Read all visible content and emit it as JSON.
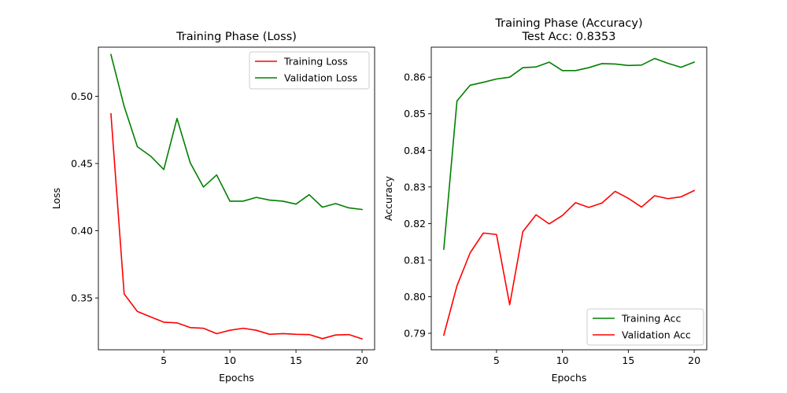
{
  "chart_data": [
    {
      "type": "line",
      "title": "Training Phase (Loss)",
      "subtitle": "",
      "xlabel": "Epochs",
      "ylabel": "Loss",
      "xlim": [
        0.05,
        20.95
      ],
      "ylim": [
        0.3115,
        0.5365
      ],
      "xticks": [
        5,
        10,
        15,
        20
      ],
      "xtick_labels": [
        "5",
        "10",
        "15",
        "20"
      ],
      "yticks": [
        0.35,
        0.4,
        0.45,
        0.5
      ],
      "ytick_labels": [
        "0.35",
        "0.40",
        "0.45",
        "0.50"
      ],
      "grid": false,
      "legend_position": "top-right",
      "x": [
        1,
        2,
        3,
        4,
        5,
        6,
        7,
        8,
        9,
        10,
        11,
        12,
        13,
        14,
        15,
        16,
        17,
        18,
        19,
        20
      ],
      "series": [
        {
          "name": "Training Loss",
          "color": "#ff0000",
          "values": [
            0.487,
            0.353,
            0.34,
            0.336,
            0.332,
            0.3315,
            0.328,
            0.3275,
            0.3235,
            0.326,
            0.3275,
            0.326,
            0.323,
            0.3235,
            0.323,
            0.3228,
            0.3198,
            0.3225,
            0.3228,
            0.3196
          ]
        },
        {
          "name": "Validation Loss",
          "color": "#008000",
          "values": [
            0.531,
            0.4925,
            0.4625,
            0.4555,
            0.4455,
            0.4835,
            0.4505,
            0.4325,
            0.4415,
            0.422,
            0.422,
            0.4248,
            0.4228,
            0.422,
            0.4198,
            0.4268,
            0.4175,
            0.4202,
            0.417,
            0.4158
          ]
        }
      ]
    },
    {
      "type": "line",
      "title": "Training Phase (Accuracy)",
      "subtitle": "Test Acc: 0.8353",
      "xlabel": "Epochs",
      "ylabel": "Accuracy",
      "xlim": [
        0.05,
        20.95
      ],
      "ylim": [
        0.7855,
        0.8682
      ],
      "xticks": [
        5,
        10,
        15,
        20
      ],
      "xtick_labels": [
        "5",
        "10",
        "15",
        "20"
      ],
      "yticks": [
        0.79,
        0.8,
        0.81,
        0.82,
        0.83,
        0.84,
        0.85,
        0.86
      ],
      "ytick_labels": [
        "0.79",
        "0.80",
        "0.81",
        "0.82",
        "0.83",
        "0.84",
        "0.85",
        "0.86"
      ],
      "grid": false,
      "legend_position": "bottom-right",
      "x": [
        1,
        2,
        3,
        4,
        5,
        6,
        7,
        8,
        9,
        10,
        11,
        12,
        13,
        14,
        15,
        16,
        17,
        18,
        19,
        20
      ],
      "series": [
        {
          "name": "Training Acc",
          "color": "#008000",
          "values": [
            0.813,
            0.8535,
            0.8578,
            0.8586,
            0.8595,
            0.86,
            0.8626,
            0.8628,
            0.8641,
            0.8618,
            0.8618,
            0.8626,
            0.8637,
            0.8636,
            0.8632,
            0.8633,
            0.8651,
            0.8638,
            0.8627,
            0.8641
          ]
        },
        {
          "name": "Validation Acc",
          "color": "#ff0000",
          "values": [
            0.7895,
            0.803,
            0.812,
            0.8174,
            0.817,
            0.7978,
            0.8178,
            0.8224,
            0.8199,
            0.8222,
            0.8257,
            0.8244,
            0.8256,
            0.8288,
            0.8269,
            0.8245,
            0.8276,
            0.8268,
            0.8273,
            0.829
          ]
        }
      ]
    }
  ]
}
